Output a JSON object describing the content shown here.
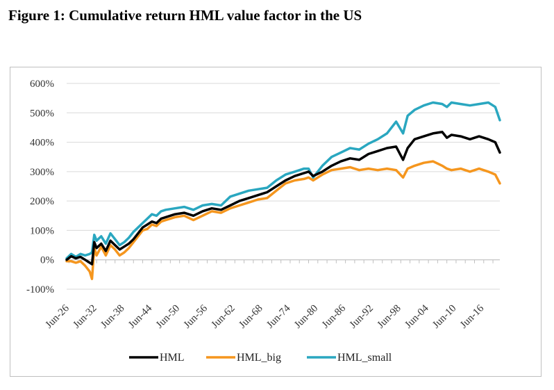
{
  "figure_title": "Figure 1: Cumulative return HML value factor in the US",
  "chart_data": {
    "type": "line",
    "title": "",
    "xlabel": "",
    "ylabel": "",
    "ylim": [
      -100,
      600
    ],
    "yticks": [
      -100,
      0,
      100,
      200,
      300,
      400,
      500,
      600
    ],
    "ytick_labels": [
      "-100%",
      "0%",
      "100%",
      "200%",
      "300%",
      "400%",
      "500%",
      "600%"
    ],
    "xlim": [
      1926.5,
      2020.5
    ],
    "xticks": [
      1926.5,
      1932.5,
      1938.5,
      1944.5,
      1950.5,
      1956.5,
      1962.5,
      1968.5,
      1974.5,
      1980.5,
      1986.5,
      1992.5,
      1998.5,
      2004.5,
      2010.5,
      2016.5
    ],
    "xtick_labels": [
      "Jun-26",
      "Jun-32",
      "Jun-38",
      "Jun-44",
      "Jun-50",
      "Jun-56",
      "Jun-62",
      "Jun-68",
      "Jun-74",
      "Jun-80",
      "Jun-86",
      "Jun-92",
      "Jun-98",
      "Jun-04",
      "Jun-10",
      "Jun-16"
    ],
    "grid": "horizontal",
    "legend_position": "bottom",
    "series": [
      {
        "name": "HML",
        "color": "#000000",
        "x": [
          1926.5,
          1927.5,
          1928.5,
          1929.5,
          1930.5,
          1931.5,
          1932.0,
          1932.5,
          1933.0,
          1934.0,
          1935.0,
          1936.0,
          1937.0,
          1938.0,
          1939.0,
          1940.0,
          1941.0,
          1942.0,
          1943.0,
          1944.0,
          1945.0,
          1946.0,
          1947.0,
          1948.0,
          1950.0,
          1952.0,
          1954.0,
          1956.0,
          1958.0,
          1960.0,
          1962.0,
          1964.0,
          1966.0,
          1968.0,
          1970.0,
          1972.0,
          1974.0,
          1976.0,
          1978.0,
          1979.0,
          1980.0,
          1982.0,
          1984.0,
          1986.0,
          1988.0,
          1990.0,
          1992.0,
          1994.0,
          1996.0,
          1998.0,
          1999.5,
          2000.5,
          2002.0,
          2004.0,
          2006.0,
          2008.0,
          2009.0,
          2010.0,
          2012.0,
          2014.0,
          2016.0,
          2018.0,
          2019.5,
          2020.5
        ],
        "values": [
          0,
          12,
          5,
          10,
          0,
          -10,
          -15,
          60,
          40,
          55,
          30,
          65,
          50,
          35,
          45,
          55,
          70,
          90,
          110,
          120,
          130,
          125,
          140,
          145,
          155,
          160,
          150,
          165,
          175,
          170,
          185,
          200,
          210,
          220,
          230,
          250,
          270,
          285,
          295,
          300,
          285,
          300,
          320,
          335,
          345,
          340,
          360,
          370,
          380,
          385,
          340,
          380,
          410,
          420,
          430,
          435,
          415,
          425,
          420,
          410,
          420,
          410,
          400,
          365
        ]
      },
      {
        "name": "HML_big",
        "color": "#f5961e",
        "x": [
          1926.5,
          1927.5,
          1928.5,
          1929.5,
          1930.5,
          1931.5,
          1932.0,
          1932.5,
          1933.0,
          1934.0,
          1935.0,
          1936.0,
          1937.0,
          1938.0,
          1939.0,
          1940.0,
          1941.0,
          1942.0,
          1943.0,
          1944.0,
          1945.0,
          1946.0,
          1947.0,
          1948.0,
          1950.0,
          1952.0,
          1954.0,
          1956.0,
          1958.0,
          1960.0,
          1962.0,
          1964.0,
          1966.0,
          1968.0,
          1970.0,
          1972.0,
          1974.0,
          1976.0,
          1978.0,
          1979.0,
          1980.0,
          1982.0,
          1984.0,
          1986.0,
          1988.0,
          1990.0,
          1992.0,
          1994.0,
          1996.0,
          1998.0,
          1999.5,
          2000.5,
          2002.0,
          2004.0,
          2006.0,
          2008.0,
          2009.0,
          2010.0,
          2012.0,
          2014.0,
          2016.0,
          2018.0,
          2019.5,
          2020.5
        ],
        "values": [
          -5,
          -5,
          -10,
          -5,
          -20,
          -40,
          -65,
          40,
          15,
          45,
          15,
          50,
          35,
          15,
          25,
          40,
          60,
          80,
          100,
          105,
          120,
          115,
          130,
          135,
          145,
          150,
          135,
          150,
          165,
          160,
          175,
          185,
          195,
          205,
          210,
          235,
          260,
          270,
          275,
          280,
          270,
          290,
          305,
          310,
          315,
          305,
          310,
          305,
          310,
          305,
          280,
          310,
          320,
          330,
          335,
          320,
          310,
          305,
          310,
          300,
          310,
          300,
          290,
          260
        ]
      },
      {
        "name": "HML_small",
        "color": "#2aa7c0",
        "x": [
          1926.5,
          1927.5,
          1928.5,
          1929.5,
          1930.5,
          1931.5,
          1932.0,
          1932.5,
          1933.0,
          1934.0,
          1935.0,
          1936.0,
          1937.0,
          1938.0,
          1939.0,
          1940.0,
          1941.0,
          1942.0,
          1943.0,
          1944.0,
          1945.0,
          1946.0,
          1947.0,
          1948.0,
          1950.0,
          1952.0,
          1954.0,
          1956.0,
          1958.0,
          1960.0,
          1962.0,
          1964.0,
          1966.0,
          1968.0,
          1970.0,
          1972.0,
          1974.0,
          1976.0,
          1978.0,
          1979.0,
          1980.0,
          1982.0,
          1984.0,
          1986.0,
          1988.0,
          1990.0,
          1992.0,
          1994.0,
          1996.0,
          1998.0,
          1999.5,
          2000.5,
          2002.0,
          2004.0,
          2006.0,
          2008.0,
          2009.0,
          2010.0,
          2012.0,
          2014.0,
          2016.0,
          2018.0,
          2019.5,
          2020.5
        ],
        "values": [
          5,
          20,
          10,
          20,
          15,
          20,
          25,
          85,
          65,
          80,
          55,
          90,
          70,
          50,
          60,
          75,
          95,
          110,
          125,
          140,
          155,
          150,
          165,
          170,
          175,
          180,
          170,
          185,
          190,
          185,
          215,
          225,
          235,
          240,
          245,
          270,
          290,
          300,
          310,
          310,
          280,
          320,
          350,
          365,
          380,
          375,
          395,
          410,
          430,
          470,
          430,
          490,
          510,
          525,
          535,
          530,
          520,
          535,
          530,
          525,
          530,
          535,
          520,
          475
        ]
      }
    ]
  }
}
